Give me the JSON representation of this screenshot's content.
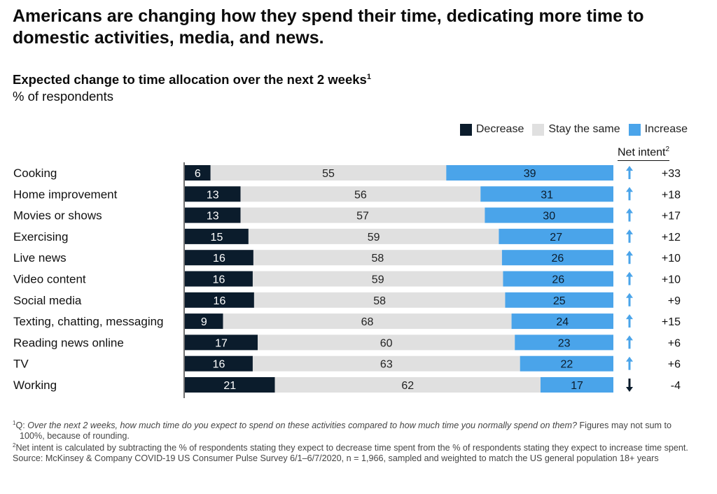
{
  "headline": "Americans are changing how they spend their time, dedicating more time to domestic activities, media, and news.",
  "subtitle": "Expected change to time allocation over the next 2 weeks",
  "subtitle_sup": "1",
  "unit": "% of respondents",
  "colors": {
    "decrease": "#0b1c2c",
    "same": "#e0e0e0",
    "increase": "#4aa4ea",
    "arrow_up": "#4aa4ea",
    "arrow_down": "#0b1c2c"
  },
  "legend": {
    "decrease": "Decrease",
    "same": "Stay the same",
    "increase": "Increase"
  },
  "net_intent_label": "Net intent",
  "net_intent_sup": "2",
  "chart_data": {
    "type": "bar",
    "orientation": "horizontal",
    "stacked": true,
    "categories": [
      "Cooking",
      "Home improvement",
      "Movies or shows",
      "Exercising",
      "Live news",
      "Video content",
      "Social media",
      "Texting, chatting, messaging",
      "Reading news online",
      "TV",
      "Working"
    ],
    "series": [
      {
        "name": "Decrease",
        "values": [
          6,
          13,
          13,
          15,
          16,
          16,
          16,
          9,
          17,
          16,
          21
        ]
      },
      {
        "name": "Stay the same",
        "values": [
          55,
          56,
          57,
          59,
          58,
          59,
          58,
          68,
          60,
          63,
          62
        ]
      },
      {
        "name": "Increase",
        "values": [
          39,
          31,
          30,
          27,
          26,
          26,
          25,
          24,
          23,
          22,
          17
        ]
      }
    ],
    "net_intent": [
      "+33",
      "+18",
      "+17",
      "+12",
      "+10",
      "+10",
      "+9",
      "+15",
      "+6",
      "+6",
      "-4"
    ],
    "net_direction": [
      "up",
      "up",
      "up",
      "up",
      "up",
      "up",
      "up",
      "up",
      "up",
      "up",
      "down"
    ],
    "xlim": [
      0,
      100
    ],
    "legend_position": "top-right"
  },
  "footnotes": {
    "fn1_marker": "1",
    "fn1_prefix": "Q: ",
    "fn1_italic": "Over the next 2 weeks, how much time do you expect to spend on these activities compared to how much time you normally spend on them?",
    "fn1_rest": " Figures may not sum to 100%, because of rounding.",
    "fn2_marker": "2",
    "fn2_text": "Net intent is calculated by subtracting the % of respondents stating they expect to decrease time spent from the % of respondents stating they expect to increase time spent.",
    "source": "Source: McKinsey & Company COVID-19 US Consumer Pulse Survey 6/1–6/7/2020, n = 1,966, sampled and weighted to match the US general population 18+ years"
  }
}
